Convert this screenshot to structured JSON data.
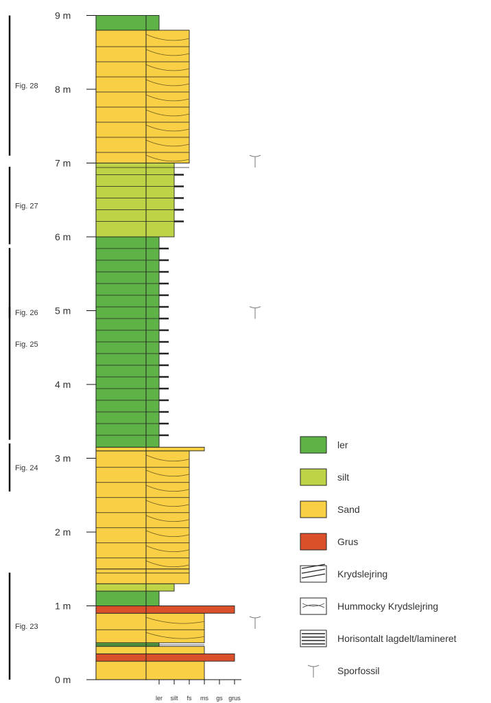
{
  "colors": {
    "ler": "#5fb346",
    "silt": "#bed446",
    "sand": "#f8cf45",
    "grus": "#d9502b",
    "line": "#222222"
  },
  "depth_axis": {
    "labels": [
      "0 m",
      "1 m",
      "2 m",
      "3 m",
      "4 m",
      "5 m",
      "6 m",
      "7 m",
      "8 m",
      "9 m"
    ]
  },
  "grain_axis": {
    "labels": [
      "ler",
      "silt",
      "fs",
      "ms",
      "gs",
      "grus"
    ]
  },
  "figure_refs": [
    {
      "label": "Fig. 28",
      "from_m": 7.1,
      "to_m": 9.0
    },
    {
      "label": "Fig. 27",
      "from_m": 5.9,
      "to_m": 6.95
    },
    {
      "label": "Fig. 26",
      "from_m": 4.9,
      "to_m": 5.05
    },
    {
      "label": "Fig. 25",
      "from_m": 3.25,
      "to_m": 5.85
    },
    {
      "label": "Fig. 24",
      "from_m": 2.55,
      "to_m": 3.2
    },
    {
      "label": "Fig. 23",
      "from_m": 0.0,
      "to_m": 1.45
    }
  ],
  "layers": [
    {
      "from_m": 0.0,
      "to_m": 0.25,
      "type": "sand",
      "grain": "ms"
    },
    {
      "from_m": 0.25,
      "to_m": 0.35,
      "type": "grus",
      "grain": "grus"
    },
    {
      "from_m": 0.35,
      "to_m": 0.45,
      "type": "sand",
      "grain": "ms"
    },
    {
      "from_m": 0.45,
      "to_m": 0.5,
      "type": "ler",
      "grain": "ler"
    },
    {
      "from_m": 0.5,
      "to_m": 0.9,
      "type": "sand",
      "grain": "ms",
      "structure": "Krydslejring"
    },
    {
      "from_m": 0.9,
      "to_m": 1.0,
      "type": "grus",
      "grain": "grus"
    },
    {
      "from_m": 1.0,
      "to_m": 1.2,
      "type": "ler",
      "grain": "ler"
    },
    {
      "from_m": 1.2,
      "to_m": 1.3,
      "type": "silt",
      "grain": "silt"
    },
    {
      "from_m": 1.3,
      "to_m": 1.5,
      "type": "sand",
      "grain": "fs"
    },
    {
      "from_m": 1.5,
      "to_m": 3.1,
      "type": "sand",
      "grain": "fs",
      "structure": "Krydslejring"
    },
    {
      "from_m": 3.1,
      "to_m": 3.15,
      "type": "sand",
      "grain": "ms"
    },
    {
      "from_m": 3.15,
      "to_m": 6.0,
      "type": "ler",
      "grain": "ler",
      "structure": "Horisontalt lagdelt/lamineret"
    },
    {
      "from_m": 6.0,
      "to_m": 7.0,
      "type": "silt",
      "grain": "silt",
      "structure": "Horisontalt lagdelt/lamineret"
    },
    {
      "from_m": 7.0,
      "to_m": 8.8,
      "type": "sand",
      "grain": "fs",
      "structure": "Krydslejring"
    },
    {
      "from_m": 8.8,
      "to_m": 9.0,
      "type": "ler",
      "grain": "ler"
    }
  ],
  "trace_fossils_m": [
    0.8,
    5.0,
    7.05
  ],
  "legend": [
    {
      "key": "ler",
      "label": "ler",
      "kind": "fill"
    },
    {
      "key": "silt",
      "label": "silt",
      "kind": "fill"
    },
    {
      "key": "sand",
      "label": "Sand",
      "kind": "fill"
    },
    {
      "key": "grus",
      "label": "Grus",
      "kind": "fill"
    },
    {
      "key": "krydslejring",
      "label": "Krydslejring",
      "kind": "pattern-cross"
    },
    {
      "key": "hummocky",
      "label": "Hummocky Krydslejring",
      "kind": "pattern-hummocky"
    },
    {
      "key": "horisontalt",
      "label": "Horisontalt lagdelt/lamineret",
      "kind": "pattern-horizontal"
    },
    {
      "key": "sporfossil",
      "label": "Sporfossil",
      "kind": "symbol"
    }
  ]
}
